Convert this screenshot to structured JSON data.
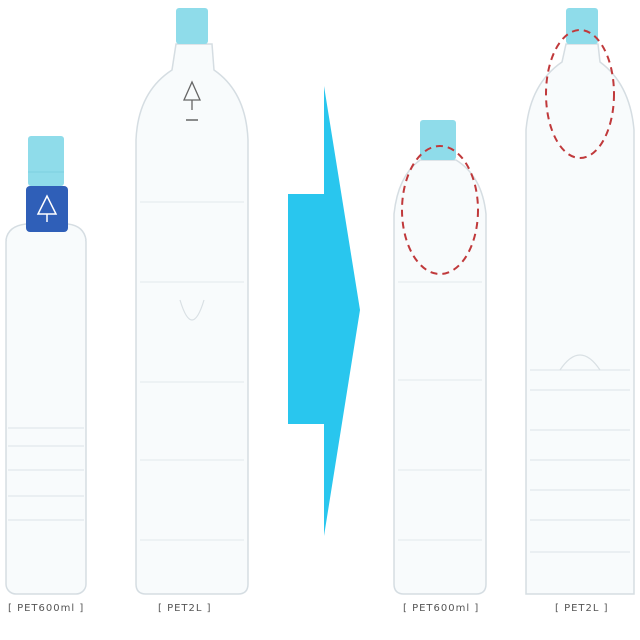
{
  "bottles": [
    {
      "id": "before-small",
      "label": "[ PET600ml ]",
      "cap_color": "#8fdcea",
      "label_band_color": "#2f5fb8"
    },
    {
      "id": "before-large",
      "label": "[ PET2L ]",
      "cap_color": "#8fdcea"
    },
    {
      "id": "after-small",
      "label": "[ PET600ml ]",
      "cap_color": "#8fdcea"
    },
    {
      "id": "after-large",
      "label": "[ PET2L ]",
      "cap_color": "#8fdcea"
    }
  ],
  "arrow": {
    "color": "#29c6ee",
    "direction": "right"
  },
  "highlight": {
    "color": "#c0393b",
    "style": "dashed-ellipse",
    "count": 2
  },
  "colors": {
    "bottle_outline": "#d5dde2",
    "bottle_fill": "#f8fbfc",
    "rib": "#e2e8ec"
  }
}
